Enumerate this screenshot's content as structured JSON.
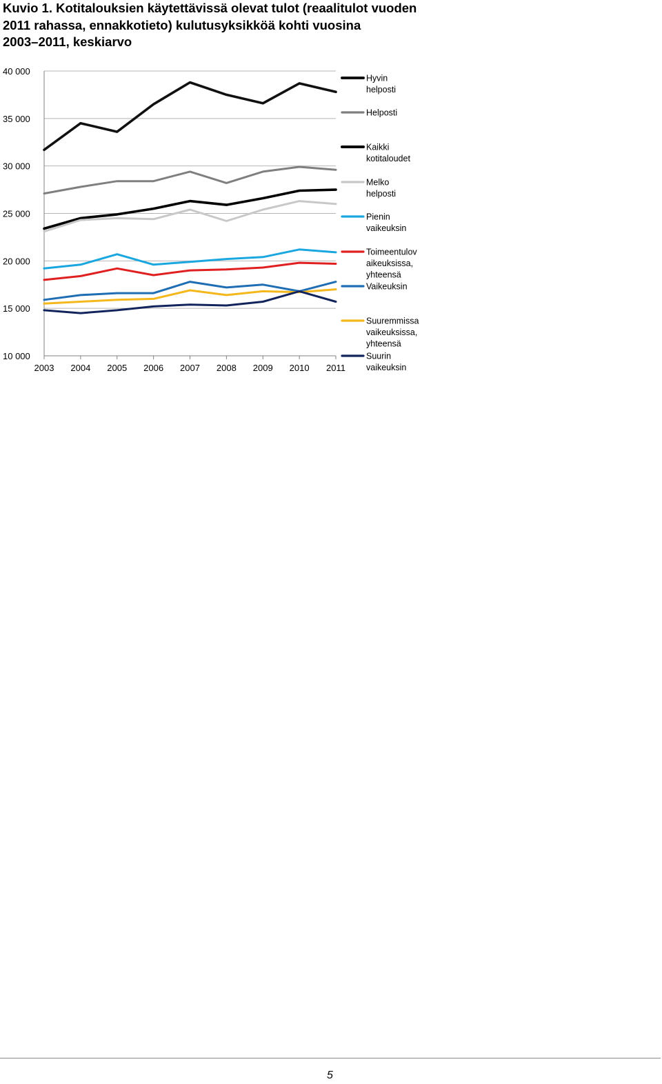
{
  "figure": {
    "title_lines": [
      "Kuvio 1. Kotitalouksien käytettävissä olevat tulot (reaalitulot vuoden",
      "2011 rahassa, ennakkotieto) kulutusyksikköä kohti vuosina",
      "2003–2011, keskiarvo"
    ]
  },
  "chart_data": {
    "type": "line",
    "title": "",
    "xlabel": "",
    "ylabel": "",
    "x": [
      2003,
      2004,
      2005,
      2006,
      2007,
      2008,
      2009,
      2010,
      2011
    ],
    "x_tick_labels": [
      "2003",
      "2004",
      "2005",
      "2006",
      "2007",
      "2008",
      "2009",
      "2010",
      "2011"
    ],
    "ylim": [
      10000,
      40000
    ],
    "y_ticks": [
      10000,
      15000,
      20000,
      25000,
      30000,
      35000,
      40000
    ],
    "y_tick_labels": [
      "10 000",
      "15 000",
      "20 000",
      "25 000",
      "30 000",
      "35 000",
      "40 000"
    ],
    "grid": true,
    "legend_position": "right",
    "series": [
      {
        "name_lines": [
          "Hyvin",
          "helposti"
        ],
        "color": "#111111",
        "thick": true,
        "values": [
          31700,
          34500,
          33600,
          36500,
          38800,
          37500,
          36600,
          38700,
          37800
        ]
      },
      {
        "name_lines": [
          "Helposti"
        ],
        "color": "#7f7f7f",
        "thick": false,
        "values": [
          27100,
          27800,
          28400,
          28400,
          29400,
          28200,
          29400,
          29900,
          29600
        ]
      },
      {
        "name_lines": [
          "Kaikki",
          "kotitaloudet"
        ],
        "color": "#000000",
        "thick": true,
        "values": [
          23400,
          24500,
          24900,
          25500,
          26300,
          25900,
          26600,
          27400,
          27500
        ]
      },
      {
        "name_lines": [
          "Melko",
          "helposti"
        ],
        "color": "#c8c8c8",
        "thick": false,
        "values": [
          23100,
          24300,
          24500,
          24400,
          25400,
          24200,
          25400,
          26300,
          26000
        ]
      },
      {
        "name_lines": [
          "Pienin",
          "vaikeuksin"
        ],
        "color": "#1aa7e0",
        "thick": false,
        "values": [
          19200,
          19600,
          20700,
          19600,
          19900,
          20200,
          20400,
          21200,
          20900
        ]
      },
      {
        "name_lines": [
          "Toimeentulov",
          "aikeuksissa,",
          "yhteensä"
        ],
        "color": "#e02020",
        "thick": false,
        "values": [
          18000,
          18400,
          19200,
          18500,
          19000,
          19100,
          19300,
          19800,
          19700
        ]
      },
      {
        "name_lines": [
          "Vaikeuksin"
        ],
        "color": "#1f6db3",
        "thick": false,
        "values": [
          15900,
          16400,
          16600,
          16600,
          17800,
          17200,
          17500,
          16800,
          17800
        ]
      },
      {
        "name_lines": [
          "Suuremmissa",
          "vaikeuksissa,",
          "yhteensä"
        ],
        "color": "#f4b81c",
        "thick": false,
        "values": [
          15500,
          15700,
          15900,
          16000,
          16900,
          16400,
          16800,
          16700,
          17000
        ]
      },
      {
        "name_lines": [
          "Suurin",
          "vaikeuksin"
        ],
        "color": "#12245c",
        "thick": false,
        "values": [
          14800,
          14500,
          14800,
          15200,
          15400,
          15300,
          15700,
          16800,
          15700
        ]
      }
    ]
  },
  "footer": {
    "page_number": "5"
  }
}
